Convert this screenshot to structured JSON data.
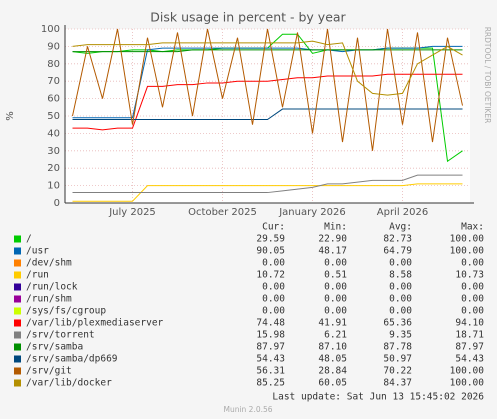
{
  "chart_data": {
    "type": "line",
    "title": "Disk usage in percent - by year",
    "y_label": "%",
    "side_label": "RRDTOOL / TOBI OETIKER",
    "footer": "Last update: Sat Jun 13 15:45:02 2026",
    "version": "Munin 2.0.56",
    "categories": [
      null,
      null,
      null,
      null,
      "July 2025",
      null,
      null,
      null,
      null,
      null,
      "October 2025",
      null,
      null,
      null,
      null,
      null,
      "January 2026",
      null,
      null,
      null,
      null,
      null,
      "April 2026",
      null,
      null,
      null,
      null
    ],
    "ylim": [
      0,
      100
    ],
    "yticks": [
      0,
      10,
      20,
      30,
      40,
      50,
      60,
      70,
      80,
      90,
      100
    ],
    "grid": true,
    "legend_headers": [
      "Cur:",
      "Min:",
      "Avg:",
      "Max:"
    ],
    "series": [
      {
        "name": "/",
        "color": "#00cc00",
        "values": [
          87,
          86,
          87,
          87,
          88,
          88,
          87,
          88,
          88,
          88,
          89,
          89,
          89,
          89,
          97,
          97,
          86,
          88,
          88,
          88,
          88,
          89,
          89,
          89,
          89,
          24,
          30
        ],
        "stats": [
          "29.59",
          "22.90",
          "82.73",
          "100.00"
        ]
      },
      {
        "name": "/usr",
        "color": "#0066b3",
        "values": [
          49,
          49,
          49,
          49,
          49,
          88,
          89,
          89,
          89,
          89,
          89,
          89,
          89,
          89,
          89,
          89,
          88,
          88,
          87,
          88,
          88,
          89,
          89,
          89,
          90,
          90,
          90
        ],
        "stats": [
          "90.05",
          "48.17",
          "64.79",
          "100.00"
        ]
      },
      {
        "name": "/dev/shm",
        "color": "#ff8000",
        "values": [
          0,
          0,
          0,
          0,
          0,
          0,
          0,
          0,
          0,
          0,
          0,
          0,
          0,
          0,
          0,
          0,
          0,
          0,
          0,
          0,
          0,
          0,
          0,
          0,
          0,
          0,
          0
        ],
        "stats": [
          "0.00",
          "0.00",
          "0.00",
          "0.00"
        ]
      },
      {
        "name": "/run",
        "color": "#ffcc00",
        "values": [
          1,
          1,
          1,
          1,
          1,
          10,
          10,
          10,
          10,
          10,
          10,
          10,
          10,
          10,
          10,
          10,
          10,
          10,
          10,
          10,
          10,
          10,
          10,
          11,
          11,
          11,
          11
        ],
        "stats": [
          "10.72",
          "0.51",
          "8.58",
          "10.73"
        ]
      },
      {
        "name": "/run/lock",
        "color": "#330099",
        "values": [
          0,
          0,
          0,
          0,
          0,
          0,
          0,
          0,
          0,
          0,
          0,
          0,
          0,
          0,
          0,
          0,
          0,
          0,
          0,
          0,
          0,
          0,
          0,
          0,
          0,
          0,
          0
        ],
        "stats": [
          "0.00",
          "0.00",
          "0.00",
          "0.00"
        ]
      },
      {
        "name": "/run/shm",
        "color": "#990099",
        "values": [
          0,
          0,
          0,
          0,
          0,
          0,
          0,
          0,
          0,
          0,
          0,
          0,
          0,
          0,
          0,
          0,
          0,
          0,
          0,
          0,
          0,
          0,
          0,
          0,
          0,
          0,
          0
        ],
        "stats": [
          "0.00",
          "0.00",
          "0.00",
          "0.00"
        ]
      },
      {
        "name": "/sys/fs/cgroup",
        "color": "#ccff00",
        "values": [
          0,
          0,
          0,
          0,
          0,
          0,
          0,
          0,
          0,
          0,
          0,
          0,
          0,
          0,
          0,
          0,
          0,
          0,
          0,
          0,
          0,
          0,
          0,
          0,
          0,
          0,
          0
        ],
        "stats": [
          "0.00",
          "0.00",
          "0.00",
          "0.00"
        ]
      },
      {
        "name": "/var/lib/plexmediaserver",
        "color": "#ff0000",
        "values": [
          43,
          43,
          42,
          43,
          43,
          67,
          67,
          68,
          68,
          69,
          69,
          70,
          70,
          70,
          71,
          72,
          72,
          73,
          73,
          73,
          73,
          74,
          74,
          74,
          74,
          74,
          74
        ],
        "stats": [
          "74.48",
          "41.91",
          "65.36",
          "94.10"
        ]
      },
      {
        "name": "/srv/torrent",
        "color": "#808080",
        "values": [
          6,
          6,
          6,
          6,
          6,
          6,
          6,
          6,
          6,
          6,
          6,
          6,
          6,
          6,
          7,
          8,
          9,
          11,
          11,
          12,
          13,
          13,
          13,
          16,
          16,
          16,
          16
        ],
        "stats": [
          "15.98",
          "6.21",
          "9.35",
          "18.71"
        ]
      },
      {
        "name": "/srv/samba",
        "color": "#008f00",
        "values": [
          87,
          87,
          87,
          87,
          87,
          87,
          87,
          87,
          88,
          88,
          88,
          88,
          88,
          88,
          88,
          88,
          88,
          88,
          88,
          88,
          88,
          88,
          88,
          88,
          88,
          88,
          88
        ],
        "stats": [
          "87.97",
          "87.10",
          "87.78",
          "87.97"
        ]
      },
      {
        "name": "/srv/samba/dp669",
        "color": "#00487d",
        "values": [
          48,
          48,
          48,
          48,
          48,
          48,
          48,
          48,
          48,
          48,
          48,
          48,
          48,
          48,
          54,
          54,
          54,
          54,
          54,
          54,
          54,
          54,
          54,
          54,
          54,
          54,
          54
        ],
        "stats": [
          "54.43",
          "48.05",
          "50.97",
          "54.43"
        ]
      },
      {
        "name": "/srv/git",
        "color": "#b35a00",
        "values": [
          50,
          90,
          60,
          100,
          45,
          95,
          55,
          98,
          50,
          100,
          60,
          95,
          45,
          100,
          55,
          98,
          40,
          100,
          35,
          95,
          30,
          100,
          45,
          98,
          35,
          95,
          56
        ],
        "stats": [
          "56.31",
          "28.84",
          "70.22",
          "100.00"
        ]
      },
      {
        "name": "/var/lib/docker",
        "color": "#b38f00",
        "values": [
          90,
          91,
          91,
          91,
          91,
          91,
          92,
          92,
          92,
          92,
          92,
          92,
          92,
          92,
          92,
          92,
          93,
          91,
          92,
          70,
          63,
          62,
          63,
          80,
          85,
          90,
          85
        ],
        "stats": [
          "85.25",
          "60.05",
          "84.37",
          "100.00"
        ]
      }
    ]
  }
}
